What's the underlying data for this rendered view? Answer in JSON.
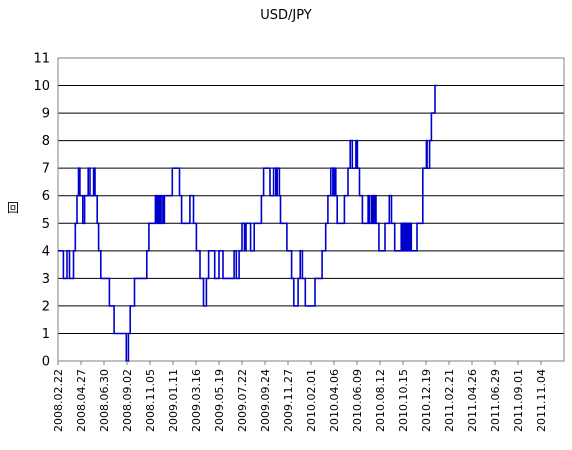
{
  "chart_data": {
    "type": "line",
    "title": "USD/JPY",
    "ylabel": "回",
    "xlabel": "",
    "ylim": [
      0,
      11
    ],
    "yticks": [
      0,
      1,
      2,
      3,
      4,
      5,
      6,
      7,
      8,
      9,
      10,
      11
    ],
    "grid": true,
    "legend": "none",
    "line_color": "#0000cc",
    "step": true,
    "x_tick_labels": [
      "2008.02.22",
      "2008.04.27",
      "2008.06.30",
      "2008.09.02",
      "2008.11.05",
      "2009.01.11",
      "2009.03.16",
      "2009.05.19",
      "2009.07.22",
      "2009.09.24",
      "2009.11.27",
      "2010.02.01",
      "2010.04.06",
      "2010.06.09",
      "2010.08.12",
      "2010.10.15",
      "2010.12.19",
      "2011.02.21",
      "2011.04.26",
      "2011.06.29",
      "2011.09.01",
      "2011.11.04"
    ],
    "x_range": [
      "2008.02.22",
      "2011.12.31"
    ],
    "series": [
      {
        "name": "",
        "points": [
          [
            "2008.02.22",
            4
          ],
          [
            "2008.03.08",
            3
          ],
          [
            "2008.03.18",
            4
          ],
          [
            "2008.03.25",
            3
          ],
          [
            "2008.04.05",
            4
          ],
          [
            "2008.04.10",
            5
          ],
          [
            "2008.04.15",
            6
          ],
          [
            "2008.04.19",
            7
          ],
          [
            "2008.04.23",
            6
          ],
          [
            "2008.05.01",
            5
          ],
          [
            "2008.05.06",
            6
          ],
          [
            "2008.05.16",
            7
          ],
          [
            "2008.05.21",
            6
          ],
          [
            "2008.05.31",
            7
          ],
          [
            "2008.06.04",
            6
          ],
          [
            "2008.06.10",
            5
          ],
          [
            "2008.06.14",
            4
          ],
          [
            "2008.06.20",
            3
          ],
          [
            "2008.07.14",
            2
          ],
          [
            "2008.07.27",
            1
          ],
          [
            "2008.08.30",
            0
          ],
          [
            "2008.09.05",
            1
          ],
          [
            "2008.09.10",
            2
          ],
          [
            "2008.09.22",
            3
          ],
          [
            "2008.10.26",
            4
          ],
          [
            "2008.11.01",
            5
          ],
          [
            "2008.11.19",
            6
          ],
          [
            "2008.11.23",
            5
          ],
          [
            "2008.11.27",
            6
          ],
          [
            "2008.12.01",
            5
          ],
          [
            "2008.12.05",
            6
          ],
          [
            "2008.12.10",
            5
          ],
          [
            "2008.12.14",
            6
          ],
          [
            "2009.01.05",
            7
          ],
          [
            "2009.01.25",
            6
          ],
          [
            "2009.01.31",
            5
          ],
          [
            "2009.02.23",
            6
          ],
          [
            "2009.03.05",
            5
          ],
          [
            "2009.03.13",
            4
          ],
          [
            "2009.03.23",
            3
          ],
          [
            "2009.04.02",
            2
          ],
          [
            "2009.04.10",
            3
          ],
          [
            "2009.04.16",
            4
          ],
          [
            "2009.05.03",
            3
          ],
          [
            "2009.05.15",
            4
          ],
          [
            "2009.05.26",
            3
          ],
          [
            "2009.06.26",
            4
          ],
          [
            "2009.07.02",
            3
          ],
          [
            "2009.07.10",
            4
          ],
          [
            "2009.07.18",
            5
          ],
          [
            "2009.07.25",
            4
          ],
          [
            "2009.07.29",
            5
          ],
          [
            "2009.08.11",
            4
          ],
          [
            "2009.08.21",
            5
          ],
          [
            "2009.09.10",
            6
          ],
          [
            "2009.09.16",
            7
          ],
          [
            "2009.10.04",
            6
          ],
          [
            "2009.10.14",
            7
          ],
          [
            "2009.10.20",
            6
          ],
          [
            "2009.10.24",
            7
          ],
          [
            "2009.10.30",
            6
          ],
          [
            "2009.11.02",
            5
          ],
          [
            "2009.11.20",
            4
          ],
          [
            "2009.12.03",
            3
          ],
          [
            "2009.12.09",
            2
          ],
          [
            "2009.12.21",
            3
          ],
          [
            "2009.12.27",
            4
          ],
          [
            "2010.01.02",
            3
          ],
          [
            "2010.01.10",
            2
          ],
          [
            "2010.02.06",
            3
          ],
          [
            "2010.02.26",
            4
          ],
          [
            "2010.03.08",
            5
          ],
          [
            "2010.03.14",
            6
          ],
          [
            "2010.03.22",
            7
          ],
          [
            "2010.03.28",
            6
          ],
          [
            "2010.04.01",
            7
          ],
          [
            "2010.04.05",
            6
          ],
          [
            "2010.04.09",
            5
          ],
          [
            "2010.04.29",
            6
          ],
          [
            "2010.05.09",
            7
          ],
          [
            "2010.05.15",
            8
          ],
          [
            "2010.05.21",
            7
          ],
          [
            "2010.05.31",
            8
          ],
          [
            "2010.06.04",
            7
          ],
          [
            "2010.06.10",
            6
          ],
          [
            "2010.06.18",
            5
          ],
          [
            "2010.07.04",
            6
          ],
          [
            "2010.07.08",
            5
          ],
          [
            "2010.07.14",
            6
          ],
          [
            "2010.07.18",
            5
          ],
          [
            "2010.07.22",
            6
          ],
          [
            "2010.07.26",
            5
          ],
          [
            "2010.08.03",
            4
          ],
          [
            "2010.08.20",
            5
          ],
          [
            "2010.09.01",
            6
          ],
          [
            "2010.09.07",
            5
          ],
          [
            "2010.09.16",
            4
          ],
          [
            "2010.10.04",
            5
          ],
          [
            "2010.10.08",
            4
          ],
          [
            "2010.10.12",
            5
          ],
          [
            "2010.10.16",
            4
          ],
          [
            "2010.10.20",
            5
          ],
          [
            "2010.10.24",
            4
          ],
          [
            "2010.10.28",
            5
          ],
          [
            "2010.11.01",
            4
          ],
          [
            "2010.11.17",
            5
          ],
          [
            "2010.12.03",
            7
          ],
          [
            "2010.12.13",
            8
          ],
          [
            "2010.12.15",
            7
          ],
          [
            "2010.12.22",
            8
          ],
          [
            "2010.12.27",
            9
          ],
          [
            "2011.01.06",
            10
          ],
          [
            "2011.01.11",
            10
          ]
        ]
      }
    ]
  }
}
